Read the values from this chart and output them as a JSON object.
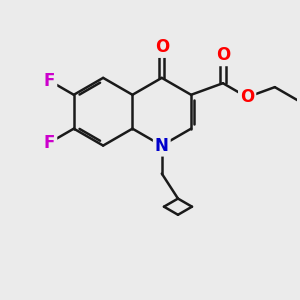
{
  "background_color": "#ebebeb",
  "bond_color": "#1a1a1a",
  "bond_width": 1.8,
  "atom_colors": {
    "O": "#ff0000",
    "N": "#0000cc",
    "F": "#cc00cc",
    "C": "#1a1a1a"
  },
  "font_size_atom": 12,
  "figsize": [
    3.0,
    3.0
  ],
  "dpi": 100
}
